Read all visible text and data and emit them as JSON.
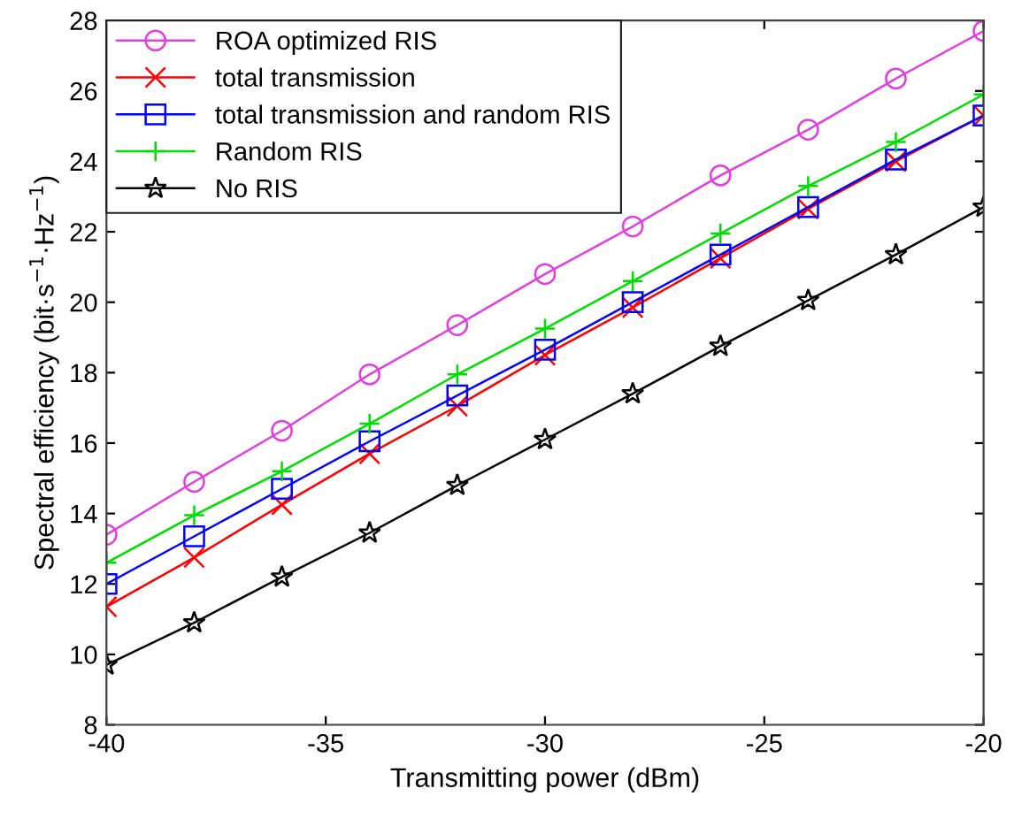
{
  "chart_data": {
    "type": "line",
    "xlabel": "Transmitting power (dBm)",
    "ylabel": "Spectral efficiency (bit·s$^{−1}$·Hz$^{−1}$)",
    "x": [
      -40,
      -38,
      -36,
      -34,
      -32,
      -30,
      -28,
      -26,
      -24,
      -22,
      -20
    ],
    "series": [
      {
        "name": "ROA optimized RIS",
        "color": "#e040e0",
        "marker": "circle",
        "values": [
          13.4,
          14.9,
          16.35,
          17.95,
          19.35,
          20.8,
          22.15,
          23.6,
          24.9,
          26.35,
          27.7
        ]
      },
      {
        "name": "total transmission",
        "color": "#ff0000",
        "marker": "cross",
        "values": [
          11.35,
          12.75,
          14.25,
          15.7,
          17.05,
          18.5,
          19.85,
          21.25,
          22.65,
          24.0,
          25.3
        ]
      },
      {
        "name": "total transmission and random RIS",
        "color": "#0000ff",
        "marker": "square",
        "values": [
          12.0,
          13.35,
          14.7,
          16.05,
          17.35,
          18.65,
          20.0,
          21.35,
          22.7,
          24.05,
          25.3
        ]
      },
      {
        "name": "Random RIS",
        "color": "#00dd00",
        "marker": "plus",
        "values": [
          12.6,
          13.95,
          15.2,
          16.55,
          17.95,
          19.25,
          20.6,
          21.95,
          23.3,
          24.55,
          25.9
        ]
      },
      {
        "name": "No RIS",
        "color": "#000000",
        "marker": "star",
        "values": [
          9.7,
          10.9,
          12.2,
          13.45,
          14.8,
          16.1,
          17.4,
          18.75,
          20.05,
          21.35,
          22.7
        ]
      }
    ],
    "xlim": [
      -40,
      -20
    ],
    "xticks": [
      -40,
      -35,
      -30,
      -25,
      -20
    ],
    "ylim": [
      8,
      28
    ],
    "yticks": [
      8,
      10,
      12,
      14,
      16,
      18,
      20,
      22,
      24,
      26,
      28
    ],
    "grid": false,
    "legend": "top left",
    "line_style": "solid"
  }
}
